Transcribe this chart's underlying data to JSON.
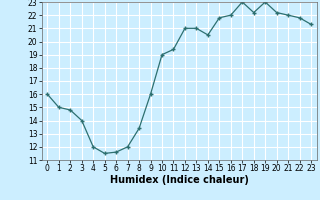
{
  "x": [
    0,
    1,
    2,
    3,
    4,
    5,
    6,
    7,
    8,
    9,
    10,
    11,
    12,
    13,
    14,
    15,
    16,
    17,
    18,
    19,
    20,
    21,
    22,
    23
  ],
  "y": [
    16,
    15,
    14.8,
    14,
    12,
    11.5,
    11.6,
    12,
    13.4,
    16,
    19,
    19.4,
    21,
    21,
    20.5,
    21.8,
    22,
    23,
    22.2,
    23,
    22.2,
    22,
    21.8,
    21.3
  ],
  "line_color": "#2d7070",
  "marker": "+",
  "marker_color": "#2d7070",
  "bg_color": "#cceeff",
  "grid_color": "#ffffff",
  "xlabel": "Humidex (Indice chaleur)",
  "xlim": [
    -0.5,
    23.5
  ],
  "ylim": [
    11,
    23
  ],
  "yticks": [
    11,
    12,
    13,
    14,
    15,
    16,
    17,
    18,
    19,
    20,
    21,
    22,
    23
  ],
  "xticks": [
    0,
    1,
    2,
    3,
    4,
    5,
    6,
    7,
    8,
    9,
    10,
    11,
    12,
    13,
    14,
    15,
    16,
    17,
    18,
    19,
    20,
    21,
    22,
    23
  ],
  "tick_fontsize": 5.5,
  "label_fontsize": 7
}
